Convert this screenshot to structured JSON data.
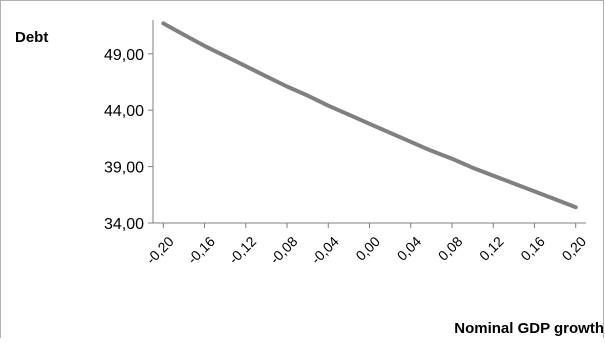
{
  "chart_data": {
    "type": "line",
    "title": "",
    "ylabel": "Debt",
    "xlabel": "Nominal GDP growth",
    "x": [
      -0.2,
      -0.18,
      -0.16,
      -0.14,
      -0.12,
      -0.1,
      -0.08,
      -0.06,
      -0.04,
      -0.02,
      0.0,
      0.02,
      0.04,
      0.06,
      0.08,
      0.1,
      0.12,
      0.14,
      0.16,
      0.18,
      0.2
    ],
    "x_tick_labels": [
      "-0,20",
      "-0,16",
      "-0,12",
      "-0,08",
      "-0,04",
      "0,00",
      "0,04",
      "0,08",
      "0,12",
      "0,16",
      "0,20"
    ],
    "x_tick_values": [
      -0.2,
      -0.16,
      -0.12,
      -0.08,
      -0.04,
      0.0,
      0.04,
      0.08,
      0.12,
      0.16,
      0.2
    ],
    "y_tick_labels": [
      "34,00",
      "39,00",
      "44,00",
      "49,00"
    ],
    "y_tick_values": [
      34,
      39,
      44,
      49
    ],
    "ylim": [
      34,
      52
    ],
    "xlim": [
      -0.21,
      0.21
    ],
    "grid": false,
    "legend": "none",
    "series": [
      {
        "values": [
          51.7,
          50.7,
          49.7,
          48.8,
          47.9,
          47.0,
          46.1,
          45.3,
          44.4,
          43.6,
          42.8,
          42.0,
          41.2,
          40.4,
          39.7,
          38.9,
          38.2,
          37.5,
          36.8,
          36.1,
          35.4
        ],
        "color": "#808080"
      }
    ]
  }
}
